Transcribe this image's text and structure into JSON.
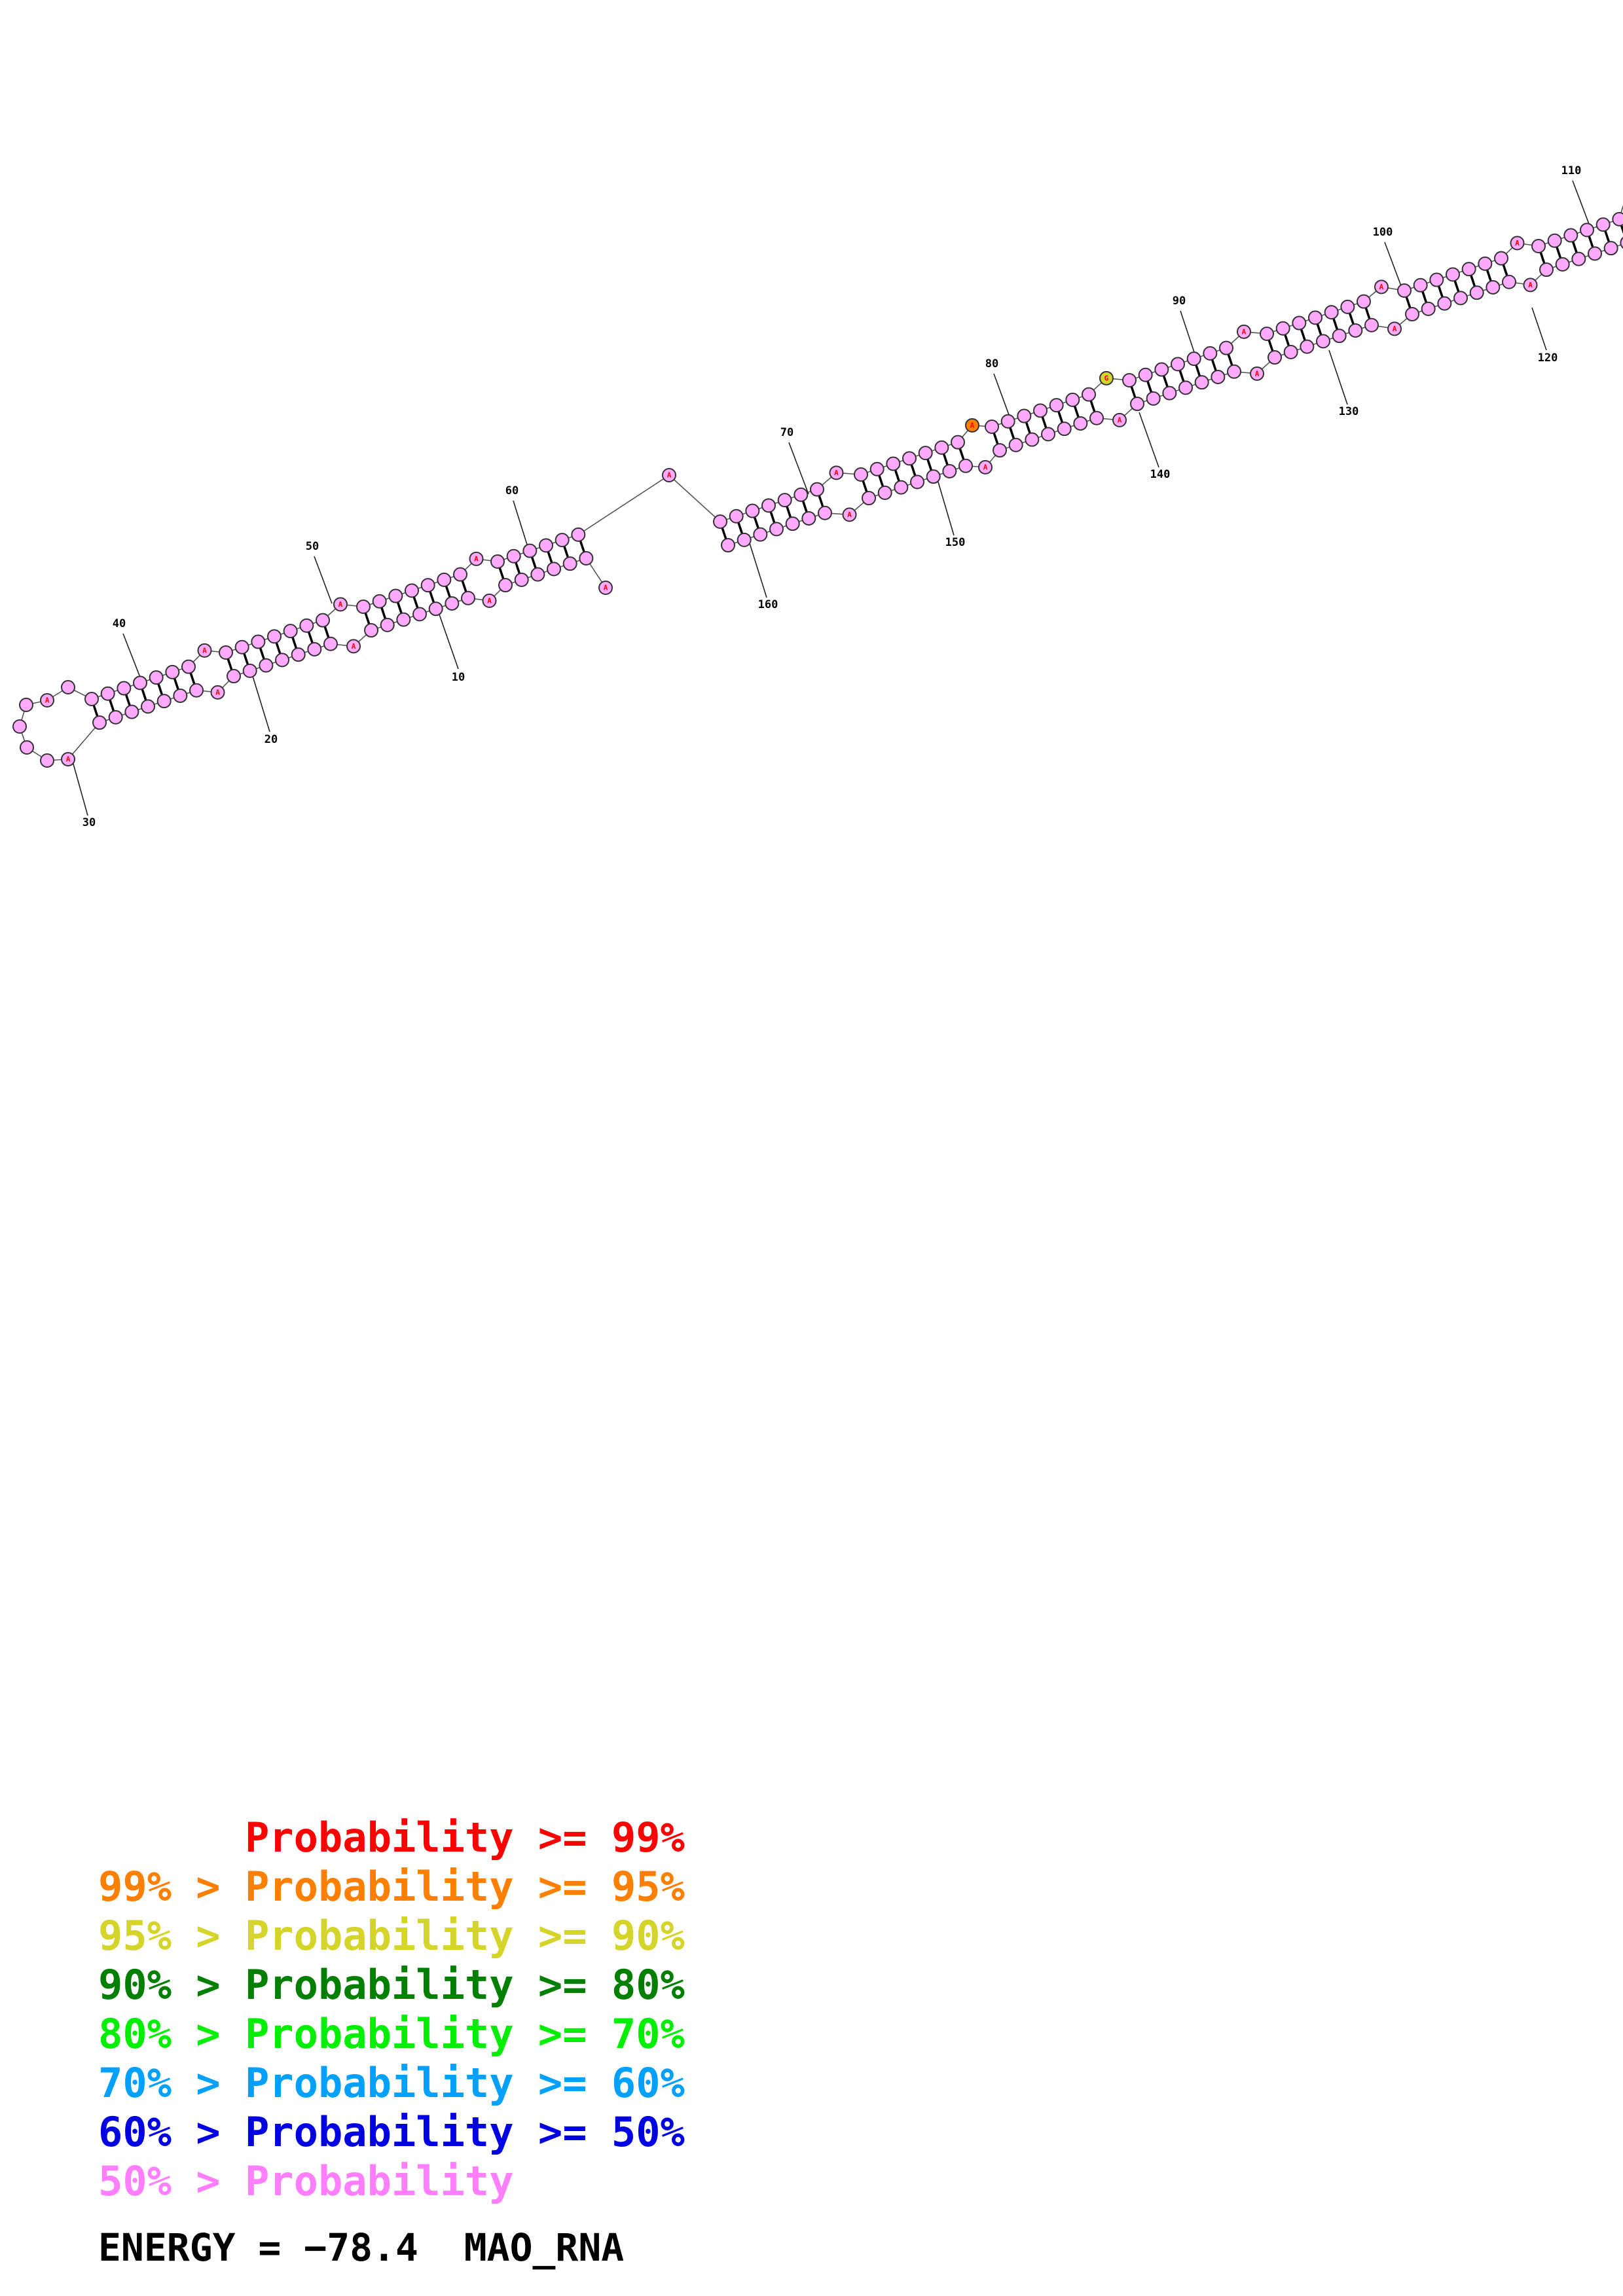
{
  "legend": [
    {
      "left": "",
      "mid": "",
      "label": "Probability",
      "op": " >= ",
      "right": "99%",
      "color": "#ff0000"
    },
    {
      "left": "99%",
      "mid": " > ",
      "label": "Probability",
      "op": " >= ",
      "right": "95%",
      "color": "#ff7f00"
    },
    {
      "left": "95%",
      "mid": " > ",
      "label": "Probability",
      "op": " >= ",
      "right": "90%",
      "color": "#d4d42a"
    },
    {
      "left": "90%",
      "mid": " > ",
      "label": "Probability",
      "op": " >= ",
      "right": "80%",
      "color": "#007f00"
    },
    {
      "left": "80%",
      "mid": " > ",
      "label": "Probability",
      "op": " >= ",
      "right": "70%",
      "color": "#00ee00"
    },
    {
      "left": "70%",
      "mid": " > ",
      "label": "Probability",
      "op": " >= ",
      "right": "60%",
      "color": "#00a0ff"
    },
    {
      "left": "60%",
      "mid": " > ",
      "label": "Probability",
      "op": " >= ",
      "right": "50%",
      "color": "#0000e0"
    },
    {
      "left": "50%",
      "mid": " > ",
      "label": "Probability",
      "op": "",
      "right": "",
      "color": "#ff7fff"
    }
  ],
  "energy": {
    "label": "ENERGY = ",
    "value": "−78.4",
    "name": "MAO_RNA"
  },
  "structure": {
    "position_labels": [
      "10",
      "20",
      "30",
      "40",
      "50",
      "60",
      "70",
      "80",
      "90",
      "100",
      "110",
      "120",
      "130",
      "140",
      "150",
      "160"
    ],
    "special_nucleotides": [
      {
        "letter": "A",
        "probability_color": "#ff0000"
      },
      {
        "letter": "A",
        "probability_color": "#ff7f00"
      },
      {
        "letter": "G",
        "probability_color": "#d4d42a"
      }
    ],
    "default_fill": "#ffaaff"
  }
}
